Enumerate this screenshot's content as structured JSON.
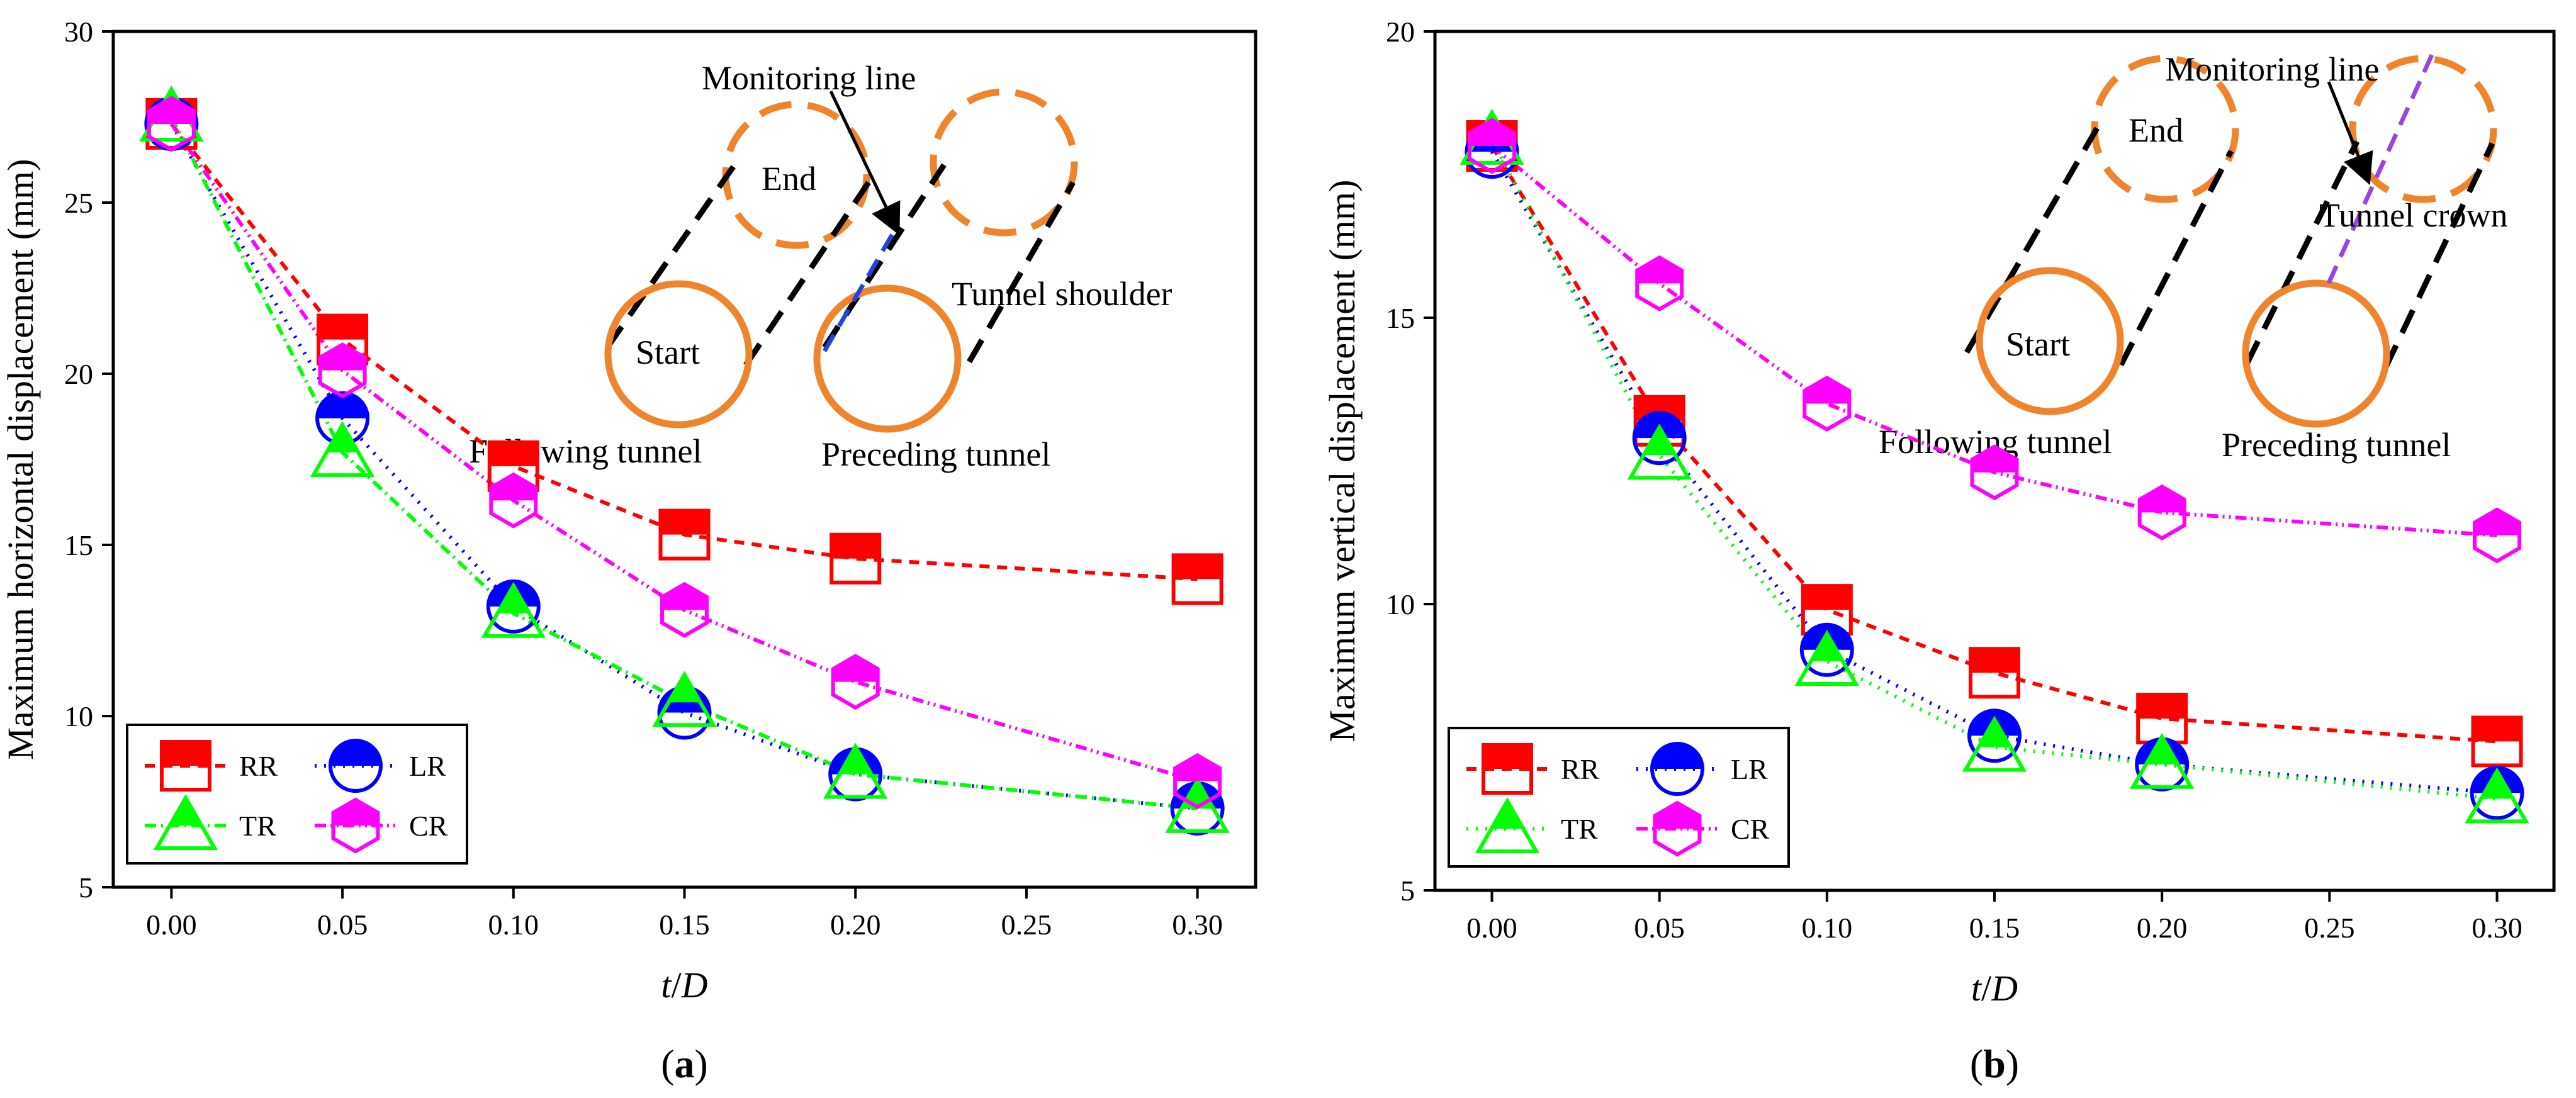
{
  "chart_data": [
    {
      "type": "line",
      "panel_label_open": "(",
      "panel_label_letter": "a",
      "panel_label_close": ")",
      "xlabel_t": "t",
      "xlabel_slash": "/",
      "xlabel_D": "D",
      "ylabel": "Maximum horizontal displacement (mm)",
      "xlim": [
        -0.017,
        0.317
      ],
      "ylim": [
        5,
        30
      ],
      "x_ticks": [
        "0.00",
        "0.05",
        "0.10",
        "0.15",
        "0.20",
        "0.25",
        "0.30"
      ],
      "y_ticks": [
        "5",
        "10",
        "15",
        "20",
        "25",
        "30"
      ],
      "x": [
        0.0,
        0.05,
        0.1,
        0.15,
        0.2,
        0.3
      ],
      "series": [
        {
          "name": "RR",
          "values": [
            27.3,
            21.0,
            17.3,
            15.3,
            14.6,
            14.0
          ],
          "color": "#ff0000",
          "marker": "square",
          "dash": "16,12"
        },
        {
          "name": "LR",
          "values": [
            27.3,
            18.7,
            13.2,
            10.1,
            8.3,
            7.3
          ],
          "color": "#0000ff",
          "marker": "circle",
          "dash": "3,12"
        },
        {
          "name": "TR",
          "values": [
            27.5,
            17.7,
            13.0,
            10.4,
            8.3,
            7.3
          ],
          "color": "#00ff00",
          "marker": "triangle",
          "dash": "18,8,3,8"
        },
        {
          "name": "CR",
          "values": [
            27.3,
            20.1,
            16.3,
            13.1,
            11.0,
            8.1
          ],
          "color": "#ff00ff",
          "marker": "hexagon",
          "dash": "18,7,3,7,3,7"
        }
      ],
      "legend_position": "bottom-left",
      "annotations": {
        "monitoring_line": "Monitoring line",
        "end": "End",
        "start": "Start",
        "location": "Tunnel shoulder",
        "following_tunnel": "Following tunnel",
        "preceding_tunnel": "Preceding tunnel",
        "monitor_color": "#2244dd"
      }
    },
    {
      "type": "line",
      "panel_label_open": "(",
      "panel_label_letter": "b",
      "panel_label_close": ")",
      "xlabel_t": "t",
      "xlabel_slash": "/",
      "xlabel_D": "D",
      "ylabel": "Maximum vertical displacement (mm)",
      "xlim": [
        -0.017,
        0.317
      ],
      "ylim": [
        5,
        20
      ],
      "x_ticks": [
        "0.00",
        "0.05",
        "0.10",
        "0.15",
        "0.20",
        "0.25",
        "0.30"
      ],
      "y_ticks": [
        "5",
        "10",
        "15",
        "20"
      ],
      "x": [
        0.0,
        0.05,
        0.1,
        0.15,
        0.2,
        0.3
      ],
      "series": [
        {
          "name": "RR",
          "values": [
            18.0,
            13.2,
            9.9,
            8.8,
            8.0,
            7.6
          ],
          "color": "#ff0000",
          "marker": "square",
          "dash": "16,12"
        },
        {
          "name": "LR",
          "values": [
            17.9,
            12.9,
            9.2,
            7.7,
            7.2,
            6.7
          ],
          "color": "#0000ff",
          "marker": "circle",
          "dash": "3,12"
        },
        {
          "name": "TR",
          "values": [
            18.1,
            12.6,
            9.0,
            7.5,
            7.2,
            6.6
          ],
          "color": "#00ff00",
          "marker": "triangle",
          "dash": "3,12"
        },
        {
          "name": "CR",
          "values": [
            18.0,
            15.6,
            13.5,
            12.3,
            11.6,
            11.2
          ],
          "color": "#ff00ff",
          "marker": "hexagon",
          "dash": "18,7,3,7,3,7"
        }
      ],
      "legend_position": "bottom-left",
      "annotations": {
        "monitoring_line": "Monitoring line",
        "end": "End",
        "start": "Start",
        "location": "Tunnel crown",
        "following_tunnel": "Following tunnel",
        "preceding_tunnel": "Preceding tunnel",
        "monitor_color": "#9944dd"
      }
    }
  ]
}
